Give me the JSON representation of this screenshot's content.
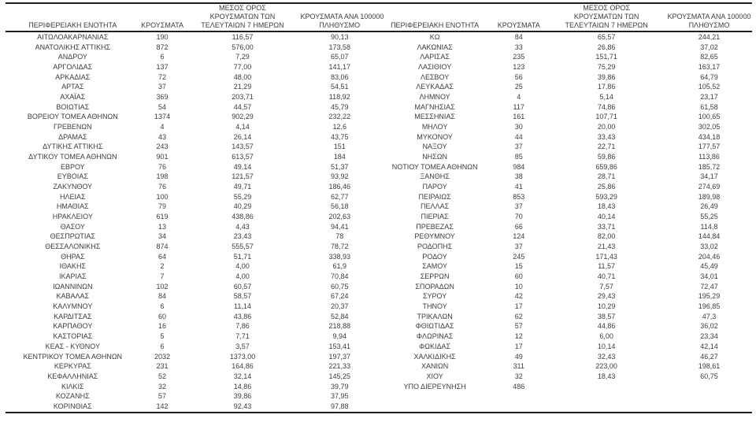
{
  "page": {
    "background_color": "#ffffff",
    "text_color": "#3c3c3c",
    "rule_color": "#1f1f1f"
  },
  "headers": {
    "region": "ΠΕΡΙΦΕΡΕΙΑΚΗ ΕΝΟΤΗΤΑ",
    "cases": "ΚΡΟΥΣΜΑΤΑ",
    "avg7_line1": "ΜΕΣΟΣ ΟΡΟΣ",
    "avg7_line2": "ΚΡΟΥΣΜΑΤΩΝ ΤΩΝ",
    "avg7_line3": "ΤΕΛΕΥΤΑΙΩΝ 7 ΗΜΕΡΩΝ",
    "per100k_line1": "ΚΡΟΥΣΜΑΤΑ ΑΝΑ 100000",
    "per100k_line2": "ΠΛΗΘΥΣΜΟ"
  },
  "left_rows": [
    [
      "ΑΙΤΩΛΟΑΚΑΡΝΑΝΙΑΣ",
      "190",
      "116,57",
      "90,13"
    ],
    [
      "ΑΝΑΤΟΛΙΚΗΣ ΑΤΤΙΚΗΣ",
      "872",
      "576,00",
      "173,58"
    ],
    [
      "ΑΝΔΡΟΥ",
      "6",
      "7,29",
      "65,07"
    ],
    [
      "ΑΡΓΟΛΙΔΑΣ",
      "137",
      "77,00",
      "141,17"
    ],
    [
      "ΑΡΚΑΔΙΑΣ",
      "72",
      "48,00",
      "83,06"
    ],
    [
      "ΑΡΤΑΣ",
      "37",
      "21,29",
      "54,51"
    ],
    [
      "ΑΧΑΪΑΣ",
      "369",
      "203,71",
      "118,92"
    ],
    [
      "ΒΟΙΩΤΙΑΣ",
      "54",
      "44,57",
      "45,79"
    ],
    [
      "ΒΟΡΕΙΟΥ ΤΟΜΕΑ ΑΘΗΝΩΝ",
      "1374",
      "902,29",
      "232,22"
    ],
    [
      "ΓΡΕΒΕΝΩΝ",
      "4",
      "4,14",
      "12,6"
    ],
    [
      "ΔΡΑΜΑΣ",
      "43",
      "26,14",
      "43,75"
    ],
    [
      "ΔΥΤΙΚΗΣ ΑΤΤΙΚΗΣ",
      "243",
      "143,57",
      "151"
    ],
    [
      "ΔΥΤΙΚΟΥ ΤΟΜΕΑ ΑΘΗΝΩΝ",
      "901",
      "613,57",
      "184"
    ],
    [
      "ΕΒΡΟΥ",
      "76",
      "49,14",
      "51,37"
    ],
    [
      "ΕΥΒΟΙΑΣ",
      "198",
      "121,57",
      "93,92"
    ],
    [
      "ΖΑΚΥΝΘΟΥ",
      "76",
      "49,71",
      "186,46"
    ],
    [
      "ΗΛΕΙΑΣ",
      "100",
      "55,29",
      "62,77"
    ],
    [
      "ΗΜΑΘΙΑΣ",
      "79",
      "40,29",
      "56,18"
    ],
    [
      "ΗΡΑΚΛΕΙΟΥ",
      "619",
      "438,86",
      "202,63"
    ],
    [
      "ΘΑΣΟΥ",
      "13",
      "4,43",
      "94,41"
    ],
    [
      "ΘΕΣΠΡΩΤΙΑΣ",
      "34",
      "23,43",
      "78"
    ],
    [
      "ΘΕΣΣΑΛΟΝΙΚΗΣ",
      "874",
      "555,57",
      "78,72"
    ],
    [
      "ΘΗΡΑΣ",
      "64",
      "51,71",
      "338,93"
    ],
    [
      "ΙΘΑΚΗΣ",
      "2",
      "4,00",
      "61,9"
    ],
    [
      "ΙΚΑΡΙΑΣ",
      "7",
      "4,00",
      "70,84"
    ],
    [
      "ΙΩΑΝΝΙΝΩΝ",
      "102",
      "60,57",
      "60,75"
    ],
    [
      "ΚΑΒΑΛΑΣ",
      "84",
      "58,57",
      "67,24"
    ],
    [
      "ΚΑΛΥΜΝΟΥ",
      "6",
      "11,14",
      "20,37"
    ],
    [
      "ΚΑΡΔΙΤΣΑΣ",
      "60",
      "43,86",
      "52,84"
    ],
    [
      "ΚΑΡΠΑΘΟΥ",
      "16",
      "7,86",
      "218,88"
    ],
    [
      "ΚΑΣΤΟΡΙΑΣ",
      "5",
      "7,71",
      "9,94"
    ],
    [
      "ΚΕΑΣ - ΚΥΘΝΟΥ",
      "6",
      "3,57",
      "153,41"
    ],
    [
      "ΚΕΝΤΡΙΚΟΥ ΤΟΜΕΑ ΑΘΗΝΩΝ",
      "2032",
      "1373,00",
      "197,37"
    ],
    [
      "ΚΕΡΚΥΡΑΣ",
      "231",
      "164,86",
      "221,33"
    ],
    [
      "ΚΕΦΑΛΛΗΝΙΑΣ",
      "52",
      "32,14",
      "145,25"
    ],
    [
      "ΚΙΛΚΙΣ",
      "32",
      "14,86",
      "39,79"
    ],
    [
      "ΚΟΖΑΝΗΣ",
      "57",
      "39,86",
      "37,95"
    ],
    [
      "ΚΟΡΙΝΘΙΑΣ",
      "142",
      "92,43",
      "97,88"
    ]
  ],
  "right_rows": [
    [
      "ΚΩ",
      "84",
      "65,57",
      "244,21"
    ],
    [
      "ΛΑΚΩΝΙΑΣ",
      "33",
      "26,86",
      "37,02"
    ],
    [
      "ΛΑΡΙΣΑΣ",
      "235",
      "151,71",
      "82,65"
    ],
    [
      "ΛΑΣΙΘΙΟΥ",
      "123",
      "75,29",
      "163,17"
    ],
    [
      "ΛΕΣΒΟΥ",
      "56",
      "39,86",
      "64,79"
    ],
    [
      "ΛΕΥΚΑΔΑΣ",
      "25",
      "17,86",
      "105,52"
    ],
    [
      "ΛΗΜΝΟΥ",
      "4",
      "5,14",
      "23,17"
    ],
    [
      "ΜΑΓΝΗΣΙΑΣ",
      "117",
      "74,86",
      "61,58"
    ],
    [
      "ΜΕΣΣΗΝΙΑΣ",
      "161",
      "107,71",
      "100,65"
    ],
    [
      "ΜΗΛΟΥ",
      "30",
      "20,00",
      "302,05"
    ],
    [
      "ΜΥΚΟΝΟΥ",
      "44",
      "33,43",
      "434,18"
    ],
    [
      "ΝΑΞΟΥ",
      "37",
      "22,71",
      "177,57"
    ],
    [
      "ΝΗΣΩΝ",
      "85",
      "59,86",
      "113,86"
    ],
    [
      "ΝΟΤΙΟΥ ΤΟΜΕΑ ΑΘΗΝΩΝ",
      "984",
      "659,86",
      "185,72"
    ],
    [
      "ΞΑΝΘΗΣ",
      "38",
      "28,71",
      "34,17"
    ],
    [
      "ΠΑΡΟΥ",
      "41",
      "25,86",
      "274,69"
    ],
    [
      "ΠΕΙΡΑΙΩΣ",
      "853",
      "593,29",
      "189,98"
    ],
    [
      "ΠΕΛΛΑΣ",
      "37",
      "18,43",
      "26,49"
    ],
    [
      "ΠΙΕΡΙΑΣ",
      "70",
      "40,14",
      "55,25"
    ],
    [
      "ΠΡΕΒΕΖΑΣ",
      "66",
      "33,71",
      "114,8"
    ],
    [
      "ΡΕΘΥΜΝΟΥ",
      "124",
      "82,00",
      "144,84"
    ],
    [
      "ΡΟΔΟΠΗΣ",
      "37",
      "21,43",
      "33,02"
    ],
    [
      "ΡΟΔΟΥ",
      "245",
      "171,43",
      "204,46"
    ],
    [
      "ΣΑΜΟΥ",
      "15",
      "11,57",
      "45,49"
    ],
    [
      "ΣΕΡΡΩΝ",
      "60",
      "40,71",
      "34,01"
    ],
    [
      "ΣΠΟΡΑΔΩΝ",
      "10",
      "7,57",
      "72,47"
    ],
    [
      "ΣΥΡΟΥ",
      "42",
      "29,43",
      "195,29"
    ],
    [
      "ΤΗΝΟΥ",
      "17",
      "10,29",
      "196,85"
    ],
    [
      "ΤΡΙΚΑΛΩΝ",
      "62",
      "38,57",
      "47,3"
    ],
    [
      "ΦΘΙΩΤΙΔΑΣ",
      "57",
      "44,86",
      "36,02"
    ],
    [
      "ΦΛΩΡΙΝΑΣ",
      "12",
      "6,00",
      "23,34"
    ],
    [
      "ΦΩΚΙΔΑΣ",
      "17",
      "10,14",
      "42,14"
    ],
    [
      "ΧΑΛΚΙΔΙΚΗΣ",
      "49",
      "32,43",
      "46,27"
    ],
    [
      "ΧΑΝΙΩΝ",
      "311",
      "223,00",
      "198,61"
    ],
    [
      "ΧΙΟΥ",
      "32",
      "18,43",
      "60,75"
    ],
    [
      "ΥΠΟ ΔΙΕΡΕΥΝΗΣΗ",
      "486",
      "",
      ""
    ]
  ]
}
